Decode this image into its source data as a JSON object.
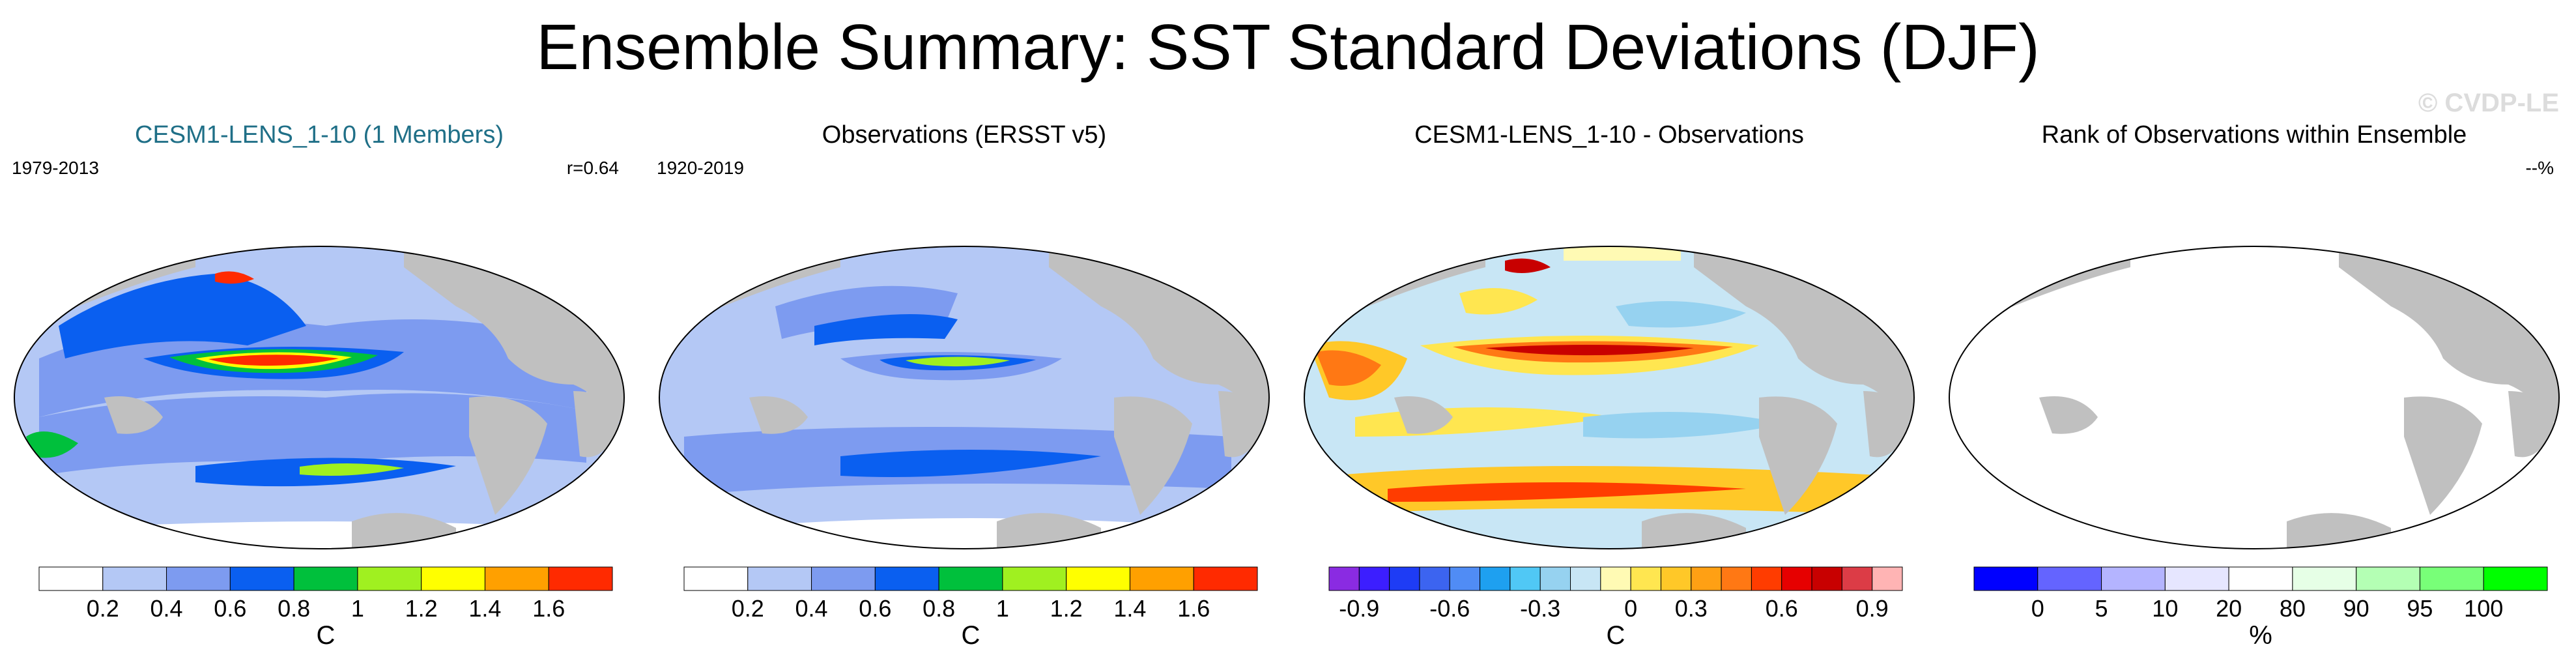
{
  "title": "Ensemble Summary: SST Standard Deviations (DJF)",
  "watermark": "© CVDP-LE",
  "panels": [
    {
      "title": "CESM1-LENS_1-10 (1 Members)",
      "left_label": "1979-2013",
      "right_label": "r=0.64",
      "title_color": "#1f6f87",
      "colorbar": {
        "unit": "C",
        "colors": [
          "#ffffff",
          "#b4c8f5",
          "#7d9bf0",
          "#0a5ff0",
          "#00c03c",
          "#a0f020",
          "#ffff00",
          "#ffa000",
          "#ff2a00"
        ],
        "ticks": [
          "0.2",
          "0.4",
          "0.6",
          "0.8",
          "1",
          "1.2",
          "1.4",
          "1.6"
        ]
      }
    },
    {
      "title": "Observations (ERSST v5)",
      "left_label": "1920-2019",
      "right_label": "",
      "title_color": "#000000",
      "colorbar": {
        "unit": "C",
        "colors": [
          "#ffffff",
          "#b4c8f5",
          "#7d9bf0",
          "#0a5ff0",
          "#00c03c",
          "#a0f020",
          "#ffff00",
          "#ffa000",
          "#ff2a00"
        ],
        "ticks": [
          "0.2",
          "0.4",
          "0.6",
          "0.8",
          "1",
          "1.2",
          "1.4",
          "1.6"
        ]
      }
    },
    {
      "title": "CESM1-LENS_1-10 - Observations",
      "left_label": "",
      "right_label": "",
      "title_color": "#000000",
      "colorbar": {
        "unit": "C",
        "colors": [
          "#8a2be2",
          "#3c1eff",
          "#1e3cf5",
          "#3c64f0",
          "#508cf5",
          "#1ea0f0",
          "#50c8f5",
          "#96d2f0",
          "#c8e6f5",
          "#fffab4",
          "#ffe650",
          "#ffc828",
          "#ffa014",
          "#ff7814",
          "#ff3c00",
          "#e60000",
          "#c80000",
          "#dc3c46",
          "#ffb4b4"
        ],
        "ticks": [
          "-0.9",
          "-0.6",
          "-0.3",
          "0",
          "0.3",
          "0.6",
          "0.9"
        ]
      }
    },
    {
      "title": "Rank of Observations within Ensemble",
      "left_label": "",
      "right_label": "--%",
      "title_color": "#000000",
      "colorbar": {
        "unit": "%",
        "colors": [
          "#0000ff",
          "#6464ff",
          "#b4b4ff",
          "#e6e6ff",
          "#ffffff",
          "#e6ffe6",
          "#b4ffb4",
          "#78ff78",
          "#00ff00"
        ],
        "ticks": [
          "0",
          "5",
          "10",
          "20",
          "80",
          "90",
          "95",
          "100"
        ]
      }
    }
  ]
}
